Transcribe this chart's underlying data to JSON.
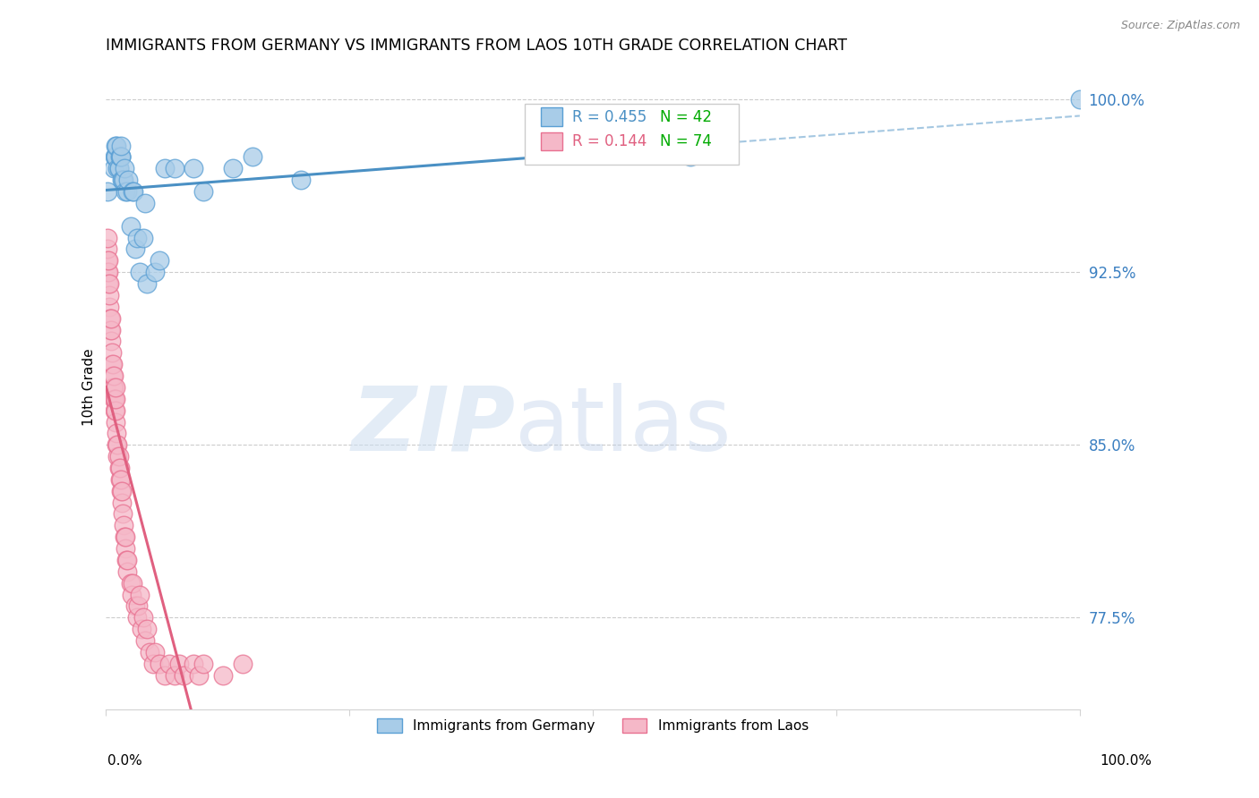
{
  "title": "IMMIGRANTS FROM GERMANY VS IMMIGRANTS FROM LAOS 10TH GRADE CORRELATION CHART",
  "source": "Source: ZipAtlas.com",
  "ylabel": "10th Grade",
  "ylabel_right_labels": [
    "100.0%",
    "92.5%",
    "85.0%",
    "77.5%"
  ],
  "ylabel_right_values": [
    1.0,
    0.925,
    0.85,
    0.775
  ],
  "germany_color": "#a8cce8",
  "laos_color": "#f5b8c8",
  "germany_edge_color": "#5a9fd4",
  "laos_edge_color": "#e87090",
  "germany_line_color": "#4a90c4",
  "laos_line_color": "#e06080",
  "legend_germany": "Immigrants from Germany",
  "legend_laos": "Immigrants from Laos",
  "R_germany": 0.455,
  "N_germany": 42,
  "R_laos": 0.144,
  "N_laos": 74,
  "germany_R_color": "#4a90c4",
  "germany_N_color": "#00aa00",
  "laos_R_color": "#e06080",
  "laos_N_color": "#00aa00",
  "xmin": 0.0,
  "xmax": 1.0,
  "ymin": 0.735,
  "ymax": 1.015,
  "germany_x": [
    0.001,
    0.008,
    0.009,
    0.01,
    0.01,
    0.01,
    0.011,
    0.012,
    0.013,
    0.013,
    0.014,
    0.015,
    0.015,
    0.015,
    0.015,
    0.016,
    0.017,
    0.018,
    0.019,
    0.02,
    0.022,
    0.023,
    0.025,
    0.027,
    0.028,
    0.03,
    0.032,
    0.035,
    0.038,
    0.04,
    0.042,
    0.05,
    0.055,
    0.06,
    0.07,
    0.09,
    0.1,
    0.13,
    0.15,
    0.2,
    0.6,
    1.0
  ],
  "germany_y": [
    0.96,
    0.97,
    0.975,
    0.975,
    0.975,
    0.98,
    0.98,
    0.97,
    0.97,
    0.97,
    0.975,
    0.975,
    0.975,
    0.975,
    0.98,
    0.965,
    0.965,
    0.965,
    0.97,
    0.96,
    0.96,
    0.965,
    0.945,
    0.96,
    0.96,
    0.935,
    0.94,
    0.925,
    0.94,
    0.955,
    0.92,
    0.925,
    0.93,
    0.97,
    0.97,
    0.97,
    0.96,
    0.97,
    0.975,
    0.965,
    0.975,
    1.0
  ],
  "laos_x": [
    0.001,
    0.001,
    0.001,
    0.001,
    0.002,
    0.002,
    0.002,
    0.003,
    0.003,
    0.003,
    0.004,
    0.004,
    0.005,
    0.005,
    0.005,
    0.006,
    0.006,
    0.007,
    0.007,
    0.007,
    0.008,
    0.008,
    0.008,
    0.009,
    0.009,
    0.01,
    0.01,
    0.01,
    0.01,
    0.011,
    0.011,
    0.012,
    0.012,
    0.013,
    0.013,
    0.014,
    0.014,
    0.015,
    0.015,
    0.016,
    0.016,
    0.017,
    0.018,
    0.019,
    0.02,
    0.02,
    0.021,
    0.022,
    0.022,
    0.025,
    0.026,
    0.027,
    0.03,
    0.032,
    0.033,
    0.035,
    0.036,
    0.038,
    0.04,
    0.042,
    0.045,
    0.048,
    0.05,
    0.055,
    0.06,
    0.065,
    0.07,
    0.075,
    0.08,
    0.09,
    0.095,
    0.1,
    0.12,
    0.14
  ],
  "laos_y": [
    0.925,
    0.93,
    0.935,
    0.94,
    0.92,
    0.925,
    0.93,
    0.91,
    0.915,
    0.92,
    0.9,
    0.905,
    0.895,
    0.9,
    0.905,
    0.885,
    0.89,
    0.875,
    0.88,
    0.885,
    0.87,
    0.875,
    0.88,
    0.865,
    0.87,
    0.86,
    0.865,
    0.87,
    0.875,
    0.85,
    0.855,
    0.845,
    0.85,
    0.84,
    0.845,
    0.835,
    0.84,
    0.83,
    0.835,
    0.825,
    0.83,
    0.82,
    0.815,
    0.81,
    0.805,
    0.81,
    0.8,
    0.795,
    0.8,
    0.79,
    0.785,
    0.79,
    0.78,
    0.775,
    0.78,
    0.785,
    0.77,
    0.775,
    0.765,
    0.77,
    0.76,
    0.755,
    0.76,
    0.755,
    0.75,
    0.755,
    0.75,
    0.755,
    0.75,
    0.755,
    0.75,
    0.755,
    0.75,
    0.755
  ]
}
